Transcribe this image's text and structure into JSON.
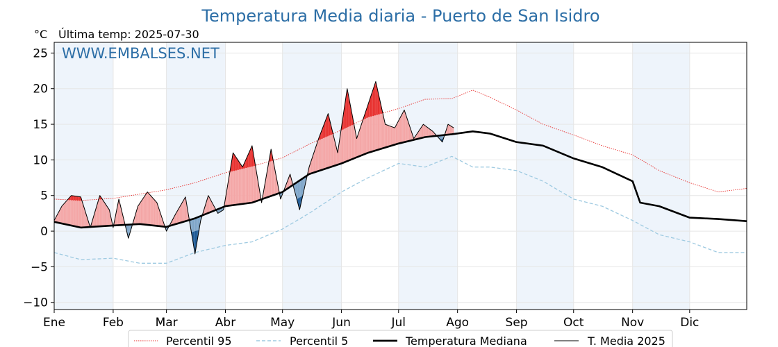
{
  "header": {
    "title": "Temperatura Media diaria - Puerto de San Isidro",
    "unit": "°C",
    "last_temp": "Última temp: 2025-07-30",
    "watermark": "WWW.EMBALSES.NET"
  },
  "legend": [
    {
      "label": "Percentil 95",
      "color": "#e8312f",
      "style": "dotted"
    },
    {
      "label": "Percentil 5",
      "color": "#9ecae1",
      "style": "dashed"
    },
    {
      "label": "Temperatura Mediana",
      "color": "#000000",
      "style": "thick"
    },
    {
      "label": "T. Media 2025",
      "color": "#000000",
      "style": "thin"
    }
  ],
  "colors": {
    "above_p95_light": "#f4a6a6",
    "above_p95_strong": "#e8312f",
    "below_median_light": "#7fa6c9",
    "below_median_strong": "#1f5b96",
    "shaded_month": "#eef4fb"
  },
  "chart_data": {
    "type": "line",
    "title": "Temperatura Media diaria - Puerto de San Isidro",
    "ylabel": "°C",
    "ylim": [
      -11,
      26.5
    ],
    "yticks": [
      -10,
      -5,
      0,
      5,
      10,
      15,
      20,
      25
    ],
    "xlim": [
      1,
      365
    ],
    "month_labels": [
      "Ene",
      "Feb",
      "Mar",
      "Abr",
      "May",
      "Jun",
      "Jul",
      "Ago",
      "Sep",
      "Oct",
      "Nov",
      "Dic"
    ],
    "month_start_day": [
      1,
      32,
      60,
      91,
      121,
      152,
      182,
      213,
      244,
      274,
      305,
      335
    ],
    "grid": true,
    "series": [
      {
        "name": "Percentil 95",
        "x": [
          1,
          15,
          32,
          46,
          60,
          75,
          91,
          105,
          121,
          135,
          152,
          166,
          182,
          196,
          210,
          221,
          230,
          244,
          258,
          274,
          289,
          305,
          319,
          335,
          350,
          365
        ],
        "y": [
          4.5,
          4.3,
          4.6,
          5.2,
          5.8,
          6.8,
          8.2,
          9.1,
          10.3,
          12.2,
          14.2,
          16.0,
          17.2,
          18.5,
          18.6,
          19.8,
          18.8,
          17.0,
          15.0,
          13.5,
          12.0,
          10.7,
          8.5,
          6.8,
          5.5,
          6.0
        ]
      },
      {
        "name": "Percentil 5",
        "x": [
          1,
          15,
          32,
          46,
          60,
          75,
          91,
          105,
          121,
          135,
          152,
          166,
          182,
          196,
          210,
          221,
          230,
          244,
          258,
          274,
          289,
          305,
          319,
          335,
          350,
          365
        ],
        "y": [
          -3.0,
          -4.0,
          -3.8,
          -4.5,
          -4.5,
          -3.0,
          -2.0,
          -1.5,
          0.3,
          2.5,
          5.5,
          7.5,
          9.5,
          9.0,
          10.5,
          9.0,
          9.0,
          8.5,
          7.0,
          4.5,
          3.5,
          1.5,
          -0.5,
          -1.5,
          -3.0,
          -3.0
        ]
      },
      {
        "name": "Temperatura Mediana",
        "x": [
          1,
          15,
          32,
          46,
          60,
          75,
          91,
          105,
          121,
          135,
          152,
          166,
          182,
          196,
          210,
          221,
          230,
          244,
          258,
          274,
          289,
          305,
          309,
          319,
          335,
          350,
          365
        ],
        "y": [
          1.3,
          0.5,
          0.8,
          1.0,
          0.6,
          1.8,
          3.5,
          4.0,
          5.5,
          8.0,
          9.5,
          11.0,
          12.3,
          13.2,
          13.6,
          14.0,
          13.7,
          12.5,
          12.0,
          10.2,
          9.0,
          7.0,
          4.0,
          3.5,
          1.9,
          1.7,
          1.4
        ]
      },
      {
        "name": "T. Media 2025",
        "x": [
          1,
          5,
          10,
          15,
          20,
          25,
          30,
          32,
          35,
          40,
          45,
          50,
          55,
          60,
          65,
          70,
          75,
          78,
          82,
          87,
          90,
          95,
          100,
          105,
          110,
          115,
          120,
          125,
          130,
          135,
          140,
          145,
          150,
          155,
          160,
          165,
          170,
          175,
          180,
          185,
          190,
          195,
          200,
          205,
          208,
          211
        ],
        "y": [
          1.5,
          3.5,
          5.0,
          4.8,
          0.5,
          5.0,
          3.0,
          0.5,
          4.5,
          -1.0,
          3.5,
          5.5,
          4.0,
          0.0,
          2.5,
          4.8,
          -3.2,
          1.5,
          5.0,
          2.5,
          3.0,
          11.0,
          9.0,
          12.0,
          4.0,
          11.5,
          4.5,
          8.0,
          3.0,
          9.0,
          13.0,
          16.5,
          11.0,
          20.0,
          13.0,
          17.0,
          21.0,
          15.0,
          14.5,
          17.0,
          13.0,
          15.0,
          14.0,
          12.5,
          15.0,
          14.5
        ]
      }
    ]
  }
}
